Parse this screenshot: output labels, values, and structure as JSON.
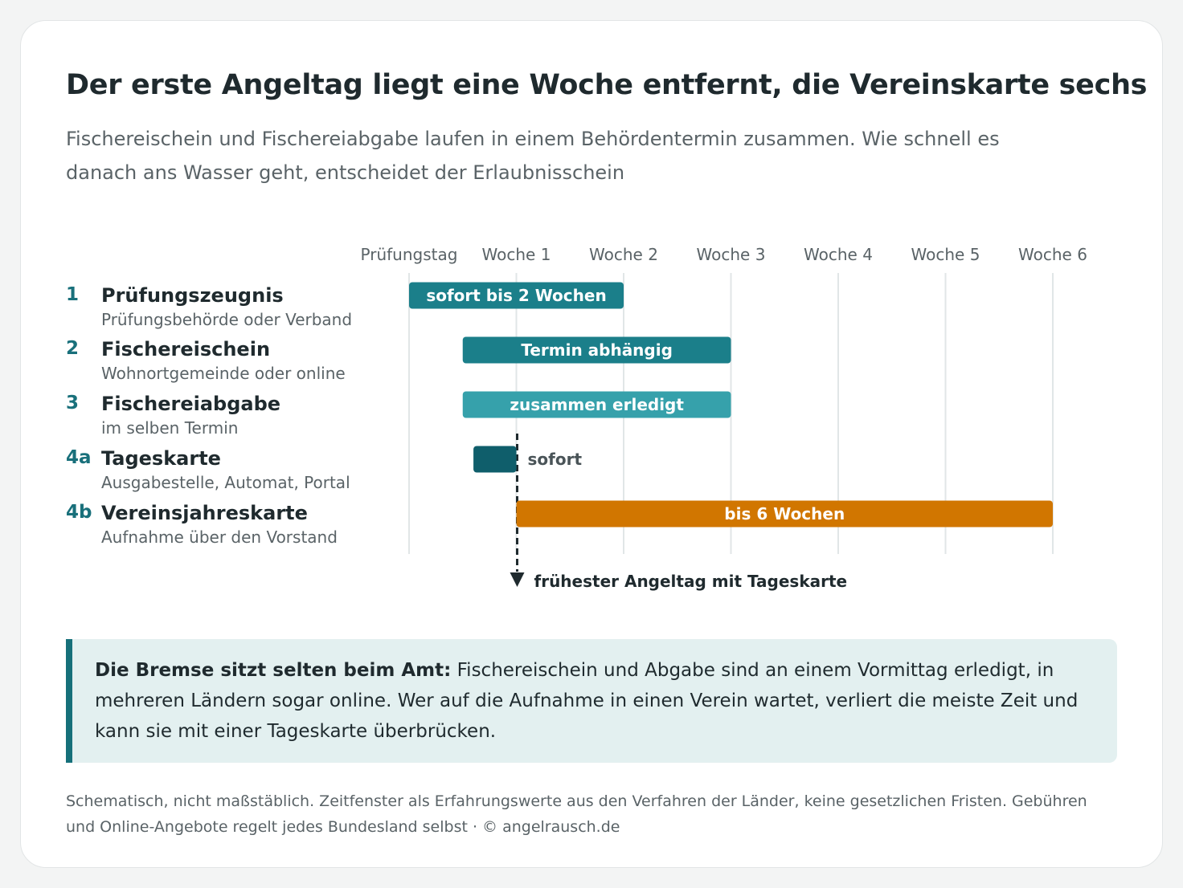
{
  "title": "Der erste Angeltag liegt eine Woche entfernt, die Vereinskarte sechs",
  "subtitle": "Fischereischein und Fischereiabgabe laufen in einem Behördentermin zusammen. Wie schnell es danach ans Wasser geht, entscheidet der Erlaubnisschein",
  "rows": [
    {
      "num": "1",
      "title": "Prüfungszeugnis",
      "sub": "Prüfungsbehörde oder Verband"
    },
    {
      "num": "2",
      "title": "Fischereischein",
      "sub": "Wohnortgemeinde oder online"
    },
    {
      "num": "3",
      "title": "Fischereiabgabe",
      "sub": "im selben Termin"
    },
    {
      "num": "4a",
      "title": "Tageskarte",
      "sub": "Ausgabestelle, Automat, Portal"
    },
    {
      "num": "4b",
      "title": "Vereinsjahreskarte",
      "sub": "Aufnahme über den Vorstand"
    }
  ],
  "chart_data": {
    "type": "bar",
    "subtype": "gantt-timeline",
    "x_unit": "weeks after exam day",
    "x_ticks": [
      {
        "value": 0,
        "label": "Prüfungstag"
      },
      {
        "value": 1,
        "label": "Woche 1"
      },
      {
        "value": 2,
        "label": "Woche 2"
      },
      {
        "value": 3,
        "label": "Woche 3"
      },
      {
        "value": 4,
        "label": "Woche 4"
      },
      {
        "value": 5,
        "label": "Woche 5"
      },
      {
        "value": 6,
        "label": "Woche 6"
      }
    ],
    "xlim": [
      0,
      6
    ],
    "grid": true,
    "bars": [
      {
        "row": 0,
        "start": 0,
        "end": 2,
        "label": "sofort bis 2 Wochen",
        "label_position": "inside",
        "color": "#1b7f8a"
      },
      {
        "row": 1,
        "start": 0.5,
        "end": 3,
        "label": "Termin abhängig",
        "label_position": "inside",
        "color": "#1b7f8a"
      },
      {
        "row": 2,
        "start": 0.5,
        "end": 3,
        "label": "zusammen erledigt",
        "label_position": "inside",
        "color": "#36a1ab"
      },
      {
        "row": 3,
        "start": 0.6,
        "end": 1,
        "label": "sofort",
        "label_position": "outside",
        "color": "#0f5e6b"
      },
      {
        "row": 4,
        "start": 1,
        "end": 6,
        "label": "bis 6 Wochen",
        "label_position": "inside",
        "color": "#d17600"
      }
    ],
    "marker": {
      "value": 1,
      "label": "frühester Angeltag mit Tageskarte"
    }
  },
  "callout": {
    "bold": "Die Bremse sitzt selten beim Amt:",
    "text": " Fischereischein und Abgabe sind an einem Vormittag erledigt, in mehreren Ländern sogar online. Wer auf die Aufnahme in einen Verein wartet, verliert die meiste Zeit und kann sie mit einer Tageskarte überbrücken."
  },
  "footnote": "Schematisch, nicht maßstäblich. Zeitfenster als Erfahrungswerte aus den Verfahren der Länder, keine gesetzlichen Fristen. Gebühren und Online-Angebote regelt jedes Bundesland selbst · © angelrausch.de",
  "colors": {
    "teal": "#1b7f8a",
    "teal_light": "#36a1ab",
    "teal_dark": "#0f5e6b",
    "orange": "#d17600",
    "grid": "#e1e6e7",
    "text_dark": "#1f2a2e",
    "text_muted": "#5a6367"
  }
}
